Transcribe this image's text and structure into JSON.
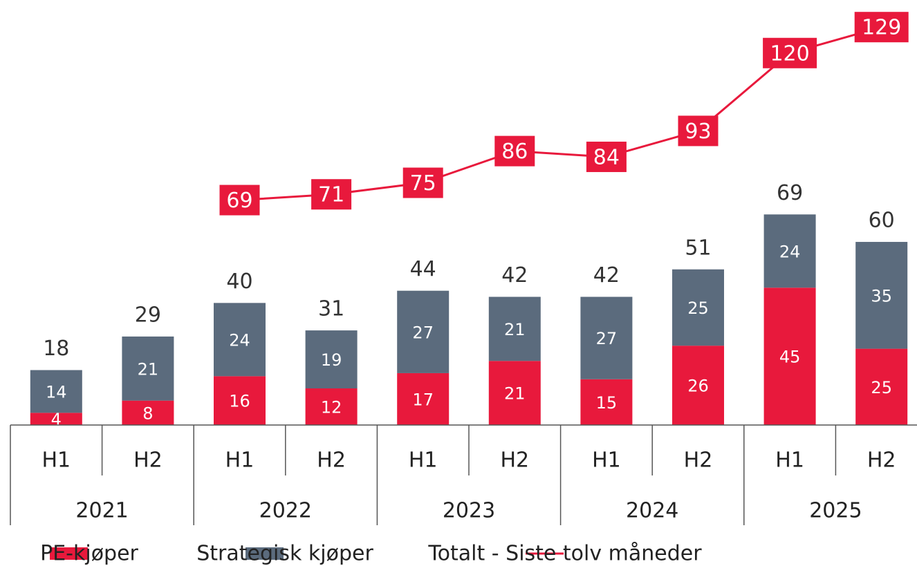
{
  "chart_data": {
    "type": "bar",
    "stacked": true,
    "categories": [
      "H1",
      "H2",
      "H1",
      "H2",
      "H1",
      "H2",
      "H1",
      "H2",
      "H1",
      "H2"
    ],
    "groups": [
      "2021",
      "2022",
      "2023",
      "2024",
      "2025"
    ],
    "series": [
      {
        "name": "PE-kjøper",
        "color": "#e8193c",
        "values": [
          4,
          8,
          16,
          12,
          17,
          21,
          15,
          26,
          45,
          25
        ]
      },
      {
        "name": "Strategisk kjøper",
        "color": "#5b6b7d",
        "values": [
          14,
          21,
          24,
          19,
          27,
          21,
          27,
          25,
          24,
          35
        ]
      },
      {
        "name": "Totalt - Siste tolv måneder",
        "type": "line",
        "axis": "y2",
        "color": "#e8193c",
        "values": [
          null,
          null,
          69,
          71,
          75,
          86,
          84,
          93,
          120,
          129
        ]
      }
    ],
    "totals": [
      18,
      29,
      40,
      31,
      44,
      42,
      42,
      51,
      69,
      60
    ],
    "ylim": [
      0,
      137
    ],
    "y2lim": [
      -9,
      136
    ],
    "legend": "bottom"
  }
}
